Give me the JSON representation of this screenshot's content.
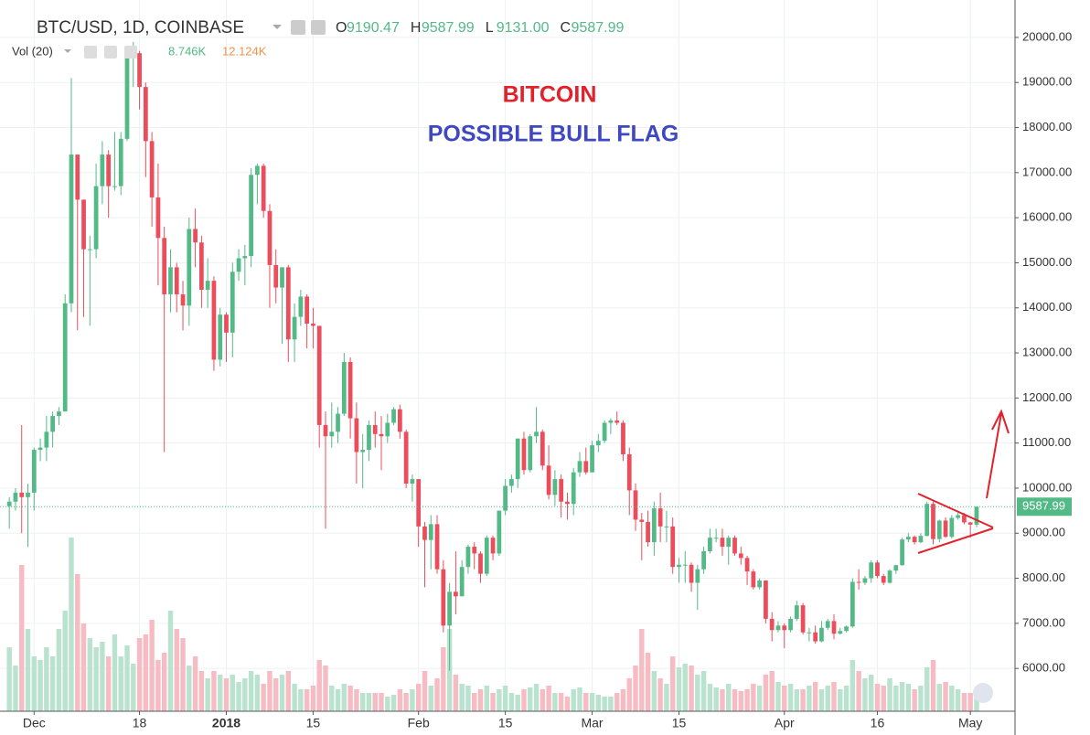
{
  "chart_data": {
    "type": "candlestick",
    "title": "BTC/USD, 1D, COINBASE",
    "ohlc_legend": [
      {
        "label": "O",
        "value": "9190.47"
      },
      {
        "label": "H",
        "value": "9587.99"
      },
      {
        "label": "L",
        "value": "9131.00"
      },
      {
        "label": "C",
        "value": "9587.99"
      }
    ],
    "volume_label": "Vol (20)",
    "volume_legend": [
      "8.746K",
      "12.124K"
    ],
    "annotations": [
      "BITCOIN",
      "POSSIBLE BULL FLAG"
    ],
    "last_price_label": "9587.99",
    "up_color": "#53b987",
    "down_color": "#eb4d5c",
    "up_volume_color": "#b9e3cf",
    "down_volume_color": "#f7bcc3",
    "grid": true,
    "xlim": [
      -1.5,
      162.2
    ],
    "xticks": [
      {
        "value": 4,
        "label": "Dec"
      },
      {
        "value": 21,
        "label": "18"
      },
      {
        "value": 35,
        "label": "2018"
      },
      {
        "value": 49,
        "label": "15"
      },
      {
        "value": 66,
        "label": "Feb"
      },
      {
        "value": 80,
        "label": "15"
      },
      {
        "value": 94,
        "label": "Mar"
      },
      {
        "value": 108,
        "label": "15"
      },
      {
        "value": 125,
        "label": "Apr"
      },
      {
        "value": 140,
        "label": "16"
      },
      {
        "value": 155,
        "label": "May"
      }
    ],
    "ylim": [
      5050,
      20830
    ],
    "yticks": [
      {
        "value": 6000,
        "label": "6000.00"
      },
      {
        "value": 7000,
        "label": "7000.00"
      },
      {
        "value": 8000,
        "label": "8000.00"
      },
      {
        "value": 9000,
        "label": "9000.00"
      },
      {
        "value": 10000,
        "label": "10000.00"
      },
      {
        "value": 11000,
        "label": "11000.00"
      },
      {
        "value": 12000,
        "label": "12000.00"
      },
      {
        "value": 13000,
        "label": "13000.00"
      },
      {
        "value": 14000,
        "label": "14000.00"
      },
      {
        "value": 15000,
        "label": "15000.00"
      },
      {
        "value": 16000,
        "label": "16000.00"
      },
      {
        "value": 17000,
        "label": "17000.00"
      },
      {
        "value": 18000,
        "label": "18000.00"
      },
      {
        "value": 19000,
        "label": "19000.00"
      },
      {
        "value": 20000,
        "label": "20000.00"
      }
    ],
    "candles": [
      [
        9600,
        9800,
        9100,
        9700
      ],
      [
        9700,
        10000,
        9500,
        9900
      ],
      [
        9900,
        11400,
        9000,
        9800
      ],
      [
        9800,
        10100,
        8700,
        9900
      ],
      [
        9900,
        10900,
        9500,
        10850
      ],
      [
        10850,
        11100,
        10600,
        10900
      ],
      [
        10900,
        11600,
        10600,
        11250
      ],
      [
        11250,
        11700,
        10900,
        11600
      ],
      [
        11600,
        11800,
        11400,
        11700
      ],
      [
        11700,
        14300,
        11700,
        14100
      ],
      [
        14100,
        19100,
        13900,
        17400
      ],
      [
        17400,
        17400,
        13500,
        16400
      ],
      [
        16400,
        16400,
        13800,
        15300
      ],
      [
        15300,
        15600,
        13600,
        15300
      ],
      [
        15300,
        17200,
        15100,
        16700
      ],
      [
        16700,
        17700,
        16300,
        17400
      ],
      [
        17400,
        17500,
        16000,
        16700
      ],
      [
        16700,
        17900,
        16600,
        16700
      ],
      [
        16700,
        17900,
        16500,
        17750
      ],
      [
        17750,
        19800,
        17700,
        19600
      ],
      [
        19600,
        19900,
        18900,
        19650
      ],
      [
        19650,
        19700,
        18400,
        18900
      ],
      [
        18900,
        19000,
        16900,
        17700
      ],
      [
        17700,
        17900,
        15800,
        16450
      ],
      [
        16450,
        17200,
        14500,
        15550
      ],
      [
        15550,
        15800,
        10800,
        14300
      ],
      [
        14300,
        15300,
        13900,
        14900
      ],
      [
        14900,
        15000,
        13900,
        14300
      ],
      [
        14300,
        14600,
        13500,
        14050
      ],
      [
        14050,
        16000,
        13600,
        15750
      ],
      [
        15750,
        16200,
        14900,
        15450
      ],
      [
        15450,
        15600,
        14000,
        14400
      ],
      [
        14400,
        15100,
        14000,
        14600
      ],
      [
        14600,
        14700,
        12600,
        12850
      ],
      [
        12850,
        14000,
        12700,
        13850
      ],
      [
        13850,
        13900,
        12800,
        13450
      ],
      [
        13450,
        15000,
        12900,
        14800
      ],
      [
        14800,
        15300,
        14600,
        15100
      ],
      [
        15100,
        15400,
        14500,
        15150
      ],
      [
        15150,
        17100,
        14900,
        16950
      ],
      [
        16950,
        17200,
        16300,
        17150
      ],
      [
        17150,
        17200,
        16000,
        16150
      ],
      [
        16150,
        16300,
        14000,
        14950
      ],
      [
        14950,
        15300,
        14100,
        14450
      ],
      [
        14450,
        14900,
        13200,
        14900
      ],
      [
        14900,
        14950,
        12800,
        13300
      ],
      [
        13300,
        14100,
        12800,
        13800
      ],
      [
        13800,
        14400,
        13600,
        14250
      ],
      [
        14250,
        14300,
        13100,
        13650
      ],
      [
        13650,
        14000,
        13100,
        13600
      ],
      [
        13600,
        13600,
        10900,
        11400
      ],
      [
        11400,
        11700,
        9100,
        11150
      ],
      [
        11150,
        11900,
        10900,
        11250
      ],
      [
        11250,
        11800,
        11000,
        11650
      ],
      [
        11650,
        13000,
        11600,
        12800
      ],
      [
        12800,
        12900,
        11100,
        11550
      ],
      [
        11550,
        11900,
        10100,
        10800
      ],
      [
        10800,
        11200,
        10000,
        10850
      ],
      [
        10850,
        11500,
        10600,
        11400
      ],
      [
        11400,
        11700,
        10900,
        11200
      ],
      [
        11200,
        11600,
        10400,
        11150
      ],
      [
        11150,
        11650,
        11000,
        11450
      ],
      [
        11450,
        11800,
        11400,
        11750
      ],
      [
        11750,
        11850,
        11100,
        11250
      ],
      [
        11250,
        11300,
        10000,
        10100
      ],
      [
        10100,
        10300,
        9700,
        10200
      ],
      [
        10200,
        10200,
        8700,
        9150
      ],
      [
        9150,
        9250,
        7800,
        8850
      ],
      [
        8850,
        9400,
        8200,
        9200
      ],
      [
        9200,
        9400,
        8100,
        8200
      ],
      [
        8200,
        8400,
        6800,
        6950
      ],
      [
        6950,
        7900,
        5950,
        7700
      ],
      [
        7700,
        8600,
        7200,
        7600
      ],
      [
        7600,
        8400,
        7600,
        8250
      ],
      [
        8250,
        8750,
        8100,
        8700
      ],
      [
        8700,
        8800,
        8200,
        8550
      ],
      [
        8550,
        8600,
        7900,
        8100
      ],
      [
        8100,
        8950,
        8050,
        8900
      ],
      [
        8900,
        8950,
        8400,
        8550
      ],
      [
        8550,
        9500,
        8500,
        9500
      ],
      [
        9500,
        10200,
        9400,
        10050
      ],
      [
        10050,
        10300,
        9900,
        10200
      ],
      [
        10200,
        11100,
        10000,
        11100
      ],
      [
        11100,
        11250,
        10300,
        10400
      ],
      [
        10400,
        11200,
        10350,
        11150
      ],
      [
        11150,
        11800,
        11000,
        11250
      ],
      [
        11250,
        11300,
        10400,
        10500
      ],
      [
        10500,
        10950,
        9750,
        9850
      ],
      [
        9850,
        10400,
        9600,
        10200
      ],
      [
        10200,
        10300,
        9350,
        9700
      ],
      [
        9700,
        9900,
        9300,
        9650
      ],
      [
        9650,
        10450,
        9400,
        10350
      ],
      [
        10350,
        10800,
        10250,
        10600
      ],
      [
        10600,
        10900,
        10300,
        10350
      ],
      [
        10350,
        11050,
        10350,
        10950
      ],
      [
        10950,
        11200,
        10800,
        11050
      ],
      [
        11050,
        11500,
        11000,
        11450
      ],
      [
        11450,
        11550,
        11200,
        11500
      ],
      [
        11500,
        11700,
        11400,
        11450
      ],
      [
        11450,
        11500,
        10600,
        10750
      ],
      [
        10750,
        10900,
        9400,
        9950
      ],
      [
        9950,
        10100,
        9050,
        9300
      ],
      [
        9300,
        9450,
        8400,
        9250
      ],
      [
        9250,
        9500,
        8700,
        8800
      ],
      [
        8800,
        9700,
        8500,
        9550
      ],
      [
        9550,
        9900,
        8800,
        9150
      ],
      [
        9150,
        9500,
        8800,
        9150
      ],
      [
        9150,
        9350,
        8100,
        8250
      ],
      [
        8250,
        8450,
        7900,
        8300
      ],
      [
        8300,
        8600,
        7900,
        8300
      ],
      [
        8300,
        8350,
        7700,
        7900
      ],
      [
        7900,
        8300,
        7300,
        8200
      ],
      [
        8200,
        8700,
        8100,
        8600
      ],
      [
        8600,
        9100,
        8550,
        8900
      ],
      [
        8900,
        9100,
        8800,
        8900
      ],
      [
        8900,
        9100,
        8500,
        8700
      ],
      [
        8700,
        8950,
        8300,
        8900
      ],
      [
        8900,
        8950,
        8500,
        8550
      ],
      [
        8550,
        8700,
        8300,
        8450
      ],
      [
        8450,
        8500,
        7850,
        8150
      ],
      [
        8150,
        8200,
        7750,
        7800
      ],
      [
        7800,
        8000,
        7750,
        7950
      ],
      [
        7950,
        7950,
        7000,
        7100
      ],
      [
        7100,
        7250,
        6600,
        6850
      ],
      [
        6850,
        7050,
        6800,
        6950
      ],
      [
        6950,
        7000,
        6450,
        6850
      ],
      [
        6850,
        7150,
        6800,
        7100
      ],
      [
        7100,
        7500,
        7050,
        7400
      ],
      [
        7400,
        7450,
        6750,
        6800
      ],
      [
        6800,
        6900,
        6600,
        6800
      ],
      [
        6800,
        6950,
        6550,
        6600
      ],
      [
        6600,
        7050,
        6580,
        6900
      ],
      [
        6900,
        7100,
        6850,
        7050
      ],
      [
        7050,
        7200,
        6650,
        6770
      ],
      [
        6770,
        6900,
        6750,
        6830
      ],
      [
        6830,
        6950,
        6800,
        6930
      ],
      [
        6930,
        8000,
        6900,
        7920
      ],
      [
        7920,
        8200,
        7750,
        7900
      ],
      [
        7900,
        8050,
        7850,
        8000
      ],
      [
        8000,
        8400,
        7900,
        8350
      ],
      [
        8350,
        8400,
        8000,
        8050
      ],
      [
        8050,
        8100,
        7850,
        7900
      ],
      [
        7900,
        8200,
        7880,
        8170
      ],
      [
        8170,
        8300,
        8100,
        8290
      ],
      [
        8290,
        8900,
        8280,
        8860
      ],
      [
        8860,
        9000,
        8800,
        8920
      ],
      [
        8920,
        8950,
        8750,
        8800
      ],
      [
        8800,
        9000,
        8780,
        8940
      ],
      [
        8940,
        9700,
        8930,
        9650
      ],
      [
        9650,
        9700,
        8750,
        8870
      ],
      [
        8870,
        9300,
        8800,
        9280
      ],
      [
        9280,
        9350,
        8900,
        8920
      ],
      [
        8920,
        9400,
        8880,
        9340
      ],
      [
        9340,
        9450,
        9300,
        9400
      ],
      [
        9400,
        9450,
        9200,
        9240
      ],
      [
        9240,
        9250,
        8900,
        9190
      ],
      [
        9190.47,
        9587.99,
        9131.0,
        9587.99
      ]
    ],
    "volume": [
      35,
      25,
      80,
      45,
      30,
      28,
      35,
      30,
      45,
      55,
      95,
      75,
      48,
      40,
      35,
      38,
      30,
      42,
      30,
      36,
      26,
      40,
      42,
      50,
      28,
      32,
      55,
      45,
      40,
      25,
      30,
      22,
      18,
      22,
      20,
      18,
      20,
      16,
      18,
      22,
      20,
      15,
      22,
      18,
      20,
      22,
      15,
      12,
      12,
      14,
      28,
      25,
      14,
      12,
      15,
      14,
      12,
      10,
      10,
      10,
      10,
      8,
      9,
      12,
      10,
      12,
      15,
      22,
      14,
      18,
      35,
      45,
      20,
      15,
      14,
      10,
      12,
      14,
      10,
      12,
      14,
      10,
      9,
      12,
      13,
      15,
      12,
      14,
      10,
      10,
      8,
      12,
      13,
      10,
      10,
      9,
      8,
      8,
      10,
      12,
      18,
      25,
      45,
      32,
      22,
      18,
      15,
      30,
      24,
      26,
      25,
      20,
      22,
      15,
      13,
      12,
      15,
      12,
      11,
      12,
      15,
      14,
      20,
      22,
      16,
      14,
      15,
      12,
      12,
      14,
      16,
      12,
      14,
      16,
      12,
      14,
      28,
      22,
      18,
      20,
      15,
      14,
      18,
      14,
      16,
      15,
      12,
      14,
      24,
      28,
      15,
      16,
      14,
      12,
      10,
      10,
      8.746
    ]
  }
}
